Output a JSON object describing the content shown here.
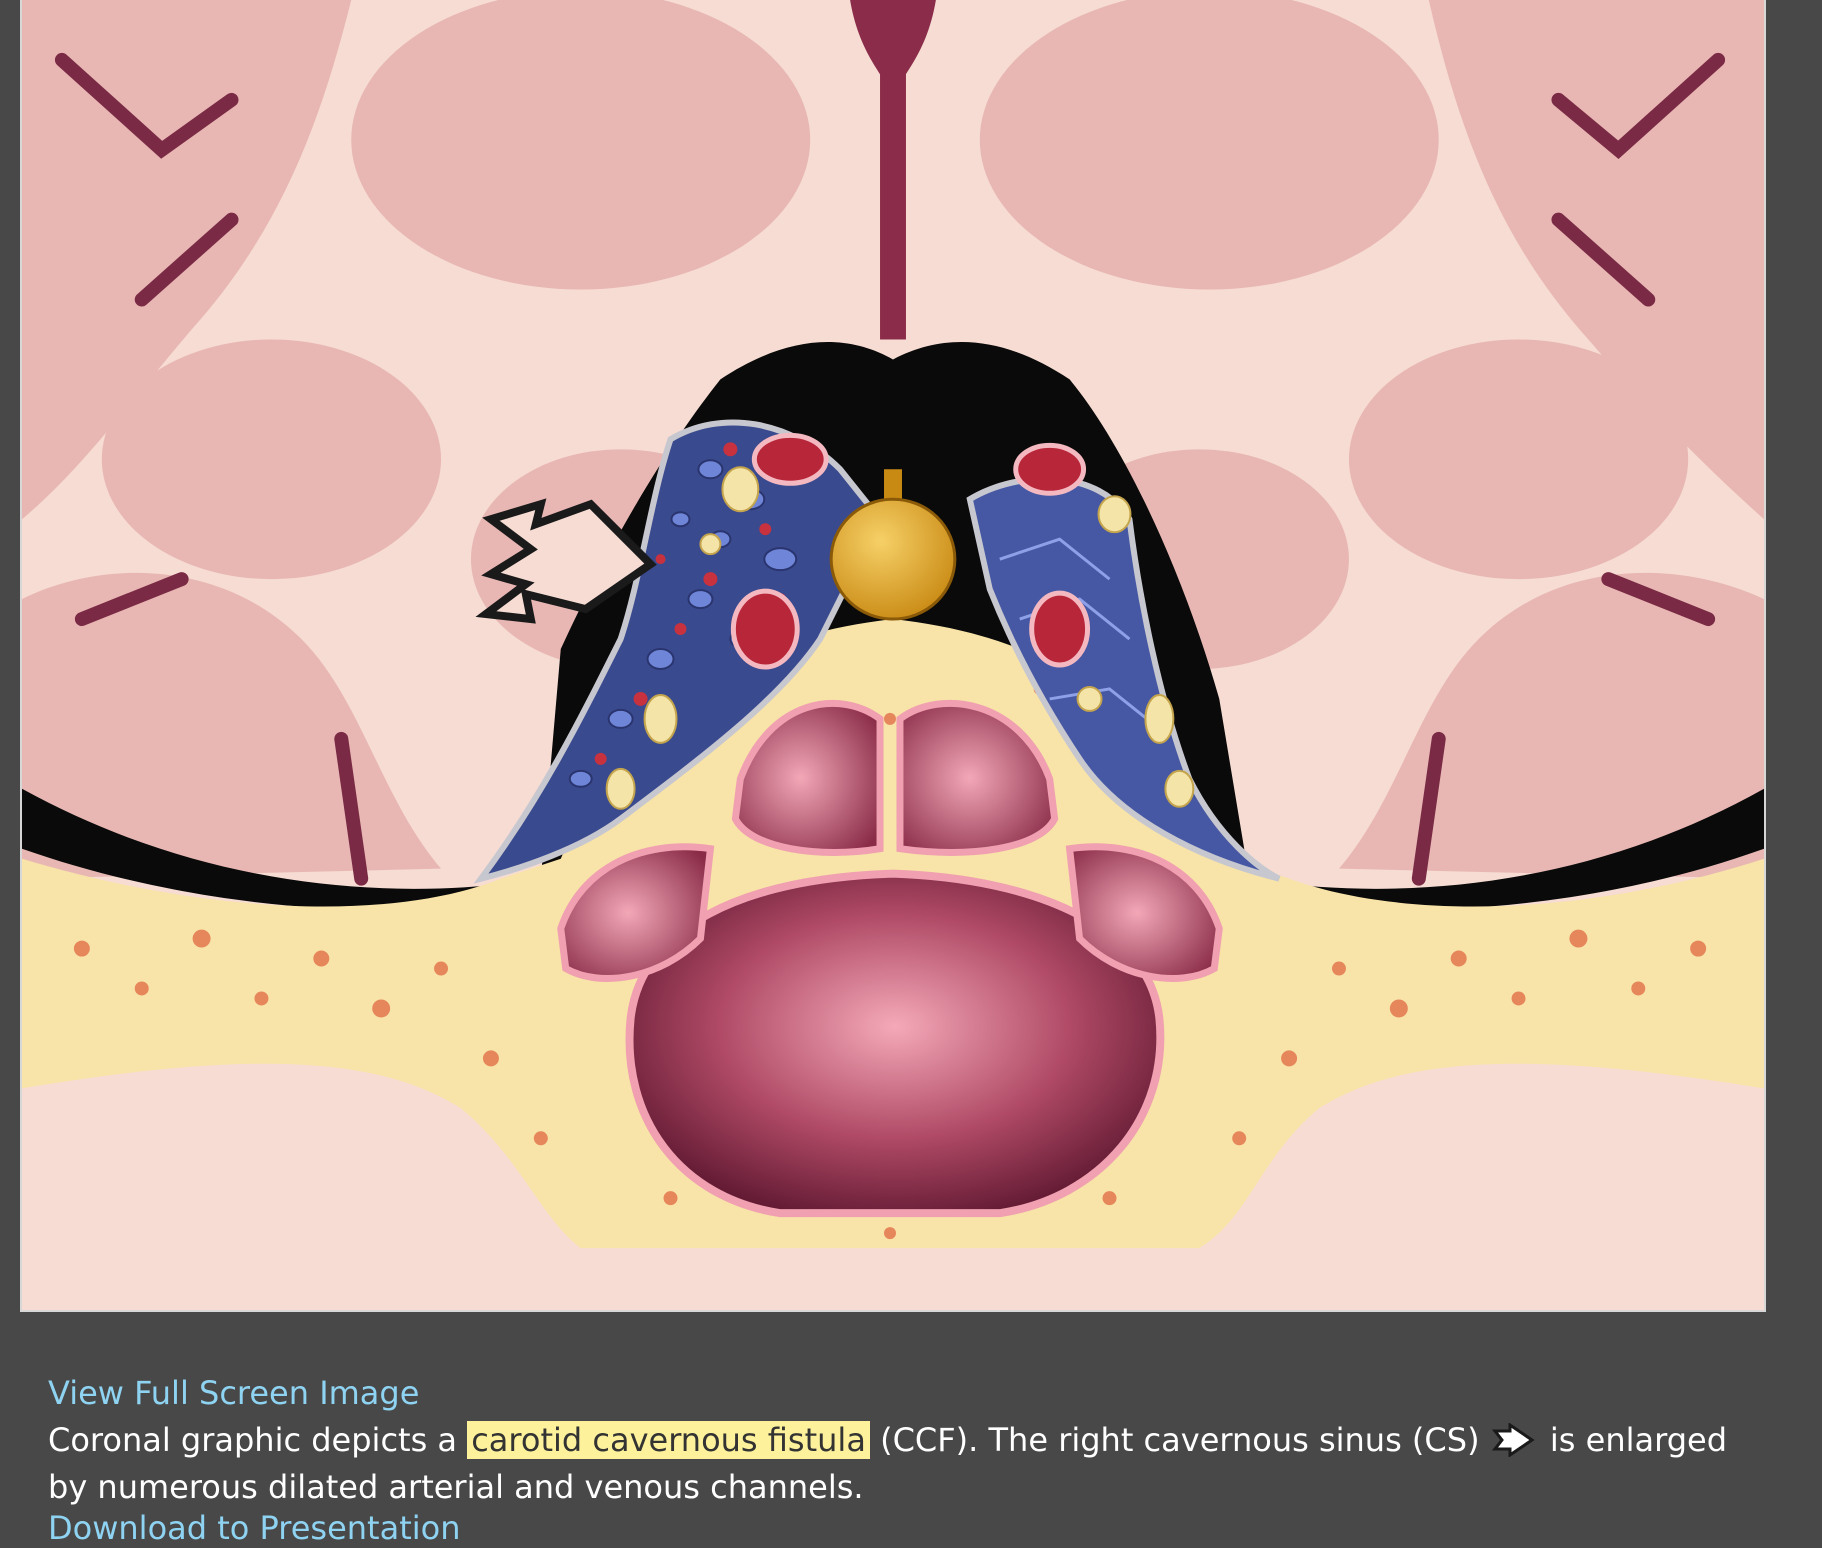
{
  "viewer": {
    "image_icon": "medical-illustration-coronal-ccf"
  },
  "links": {
    "fullscreen_label": "View Full Screen Image",
    "download_label": "Download to Presentation"
  },
  "caption": {
    "part1": "Coronal graphic depicts a ",
    "highlight": "carotid cavernous fistula",
    "part2": " (CCF). The right cavernous sinus (CS) ",
    "arrow_icon": "open-arrow-icon",
    "part3": " is enlarged by numerous dilated arterial and venous channels."
  },
  "colors": {
    "background": "#484848",
    "link": "#8fd3f2",
    "highlight": "#fdf29b"
  }
}
